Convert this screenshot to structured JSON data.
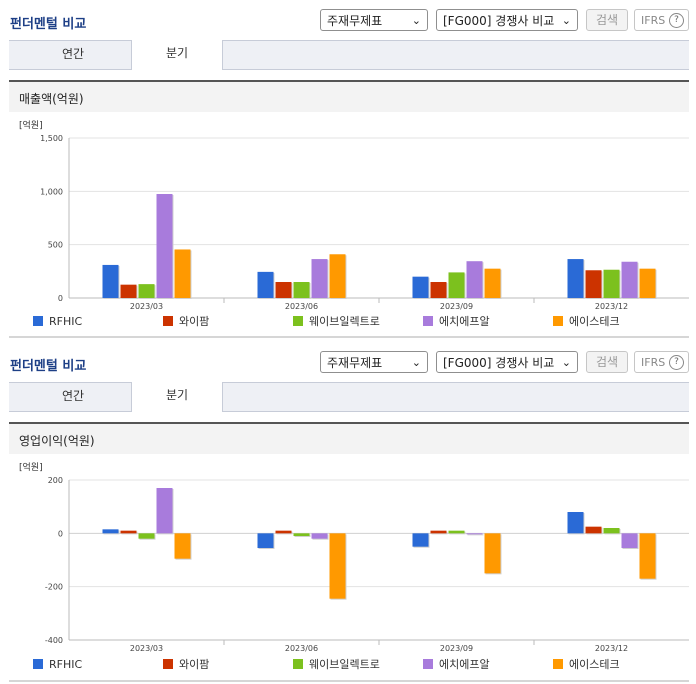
{
  "panels": [
    {
      "title": "펀더멘털 비교",
      "select1": "주재무제표",
      "select2": "[FG000] 경쟁사 비교",
      "search_label": "검색",
      "ifrs_label": "IFRS",
      "tabs": [
        "연간",
        "분기"
      ],
      "active_tab": 1,
      "metric_label": "매출액(억원)"
    },
    {
      "title": "펀더멘털 비교",
      "select1": "주재무제표",
      "select2": "[FG000] 경쟁사 비교",
      "search_label": "검색",
      "ifrs_label": "IFRS",
      "tabs": [
        "연간",
        "분기"
      ],
      "active_tab": 1,
      "metric_label": "영업이익(억원)"
    }
  ],
  "chart_data": [
    {
      "type": "bar",
      "unit_label": "[억원]",
      "categories": [
        "2023/03",
        "2023/06",
        "2023/09",
        "2023/12"
      ],
      "yticks": [
        "1,500",
        "1,000",
        "500",
        "0"
      ],
      "ytick_values": [
        1500,
        1000,
        500,
        0
      ],
      "ylim": [
        0,
        1500
      ],
      "grid": true,
      "legend_position": "bottom",
      "series": [
        {
          "name": "RFHIC",
          "color": "#2a6ad6",
          "values": [
            310,
            245,
            200,
            365
          ]
        },
        {
          "name": "와이팜",
          "color": "#cc3300",
          "values": [
            125,
            150,
            150,
            260
          ]
        },
        {
          "name": "웨이브일렉트로",
          "color": "#7cc11e",
          "values": [
            130,
            150,
            240,
            265
          ]
        },
        {
          "name": "에치에프알",
          "color": "#a87bdc",
          "values": [
            975,
            365,
            345,
            340
          ]
        },
        {
          "name": "에이스테크",
          "color": "#ff9900",
          "values": [
            455,
            410,
            275,
            275
          ]
        }
      ]
    },
    {
      "type": "bar",
      "unit_label": "[억원]",
      "categories": [
        "2023/03",
        "2023/06",
        "2023/09",
        "2023/12"
      ],
      "yticks": [
        "200",
        "0",
        "-200",
        "-400"
      ],
      "ytick_values": [
        200,
        0,
        -200,
        -400
      ],
      "ylim": [
        -400,
        200
      ],
      "grid": true,
      "legend_position": "bottom",
      "series": [
        {
          "name": "RFHIC",
          "color": "#2a6ad6",
          "values": [
            15,
            -55,
            -50,
            80
          ]
        },
        {
          "name": "와이팜",
          "color": "#cc3300",
          "values": [
            10,
            10,
            10,
            25
          ]
        },
        {
          "name": "웨이브일렉트로",
          "color": "#7cc11e",
          "values": [
            -20,
            -10,
            10,
            20
          ]
        },
        {
          "name": "에치에프알",
          "color": "#a87bdc",
          "values": [
            170,
            -20,
            0,
            -55
          ]
        },
        {
          "name": "에이스테크",
          "color": "#ff9900",
          "values": [
            -95,
            -245,
            -150,
            -170
          ]
        }
      ]
    }
  ]
}
